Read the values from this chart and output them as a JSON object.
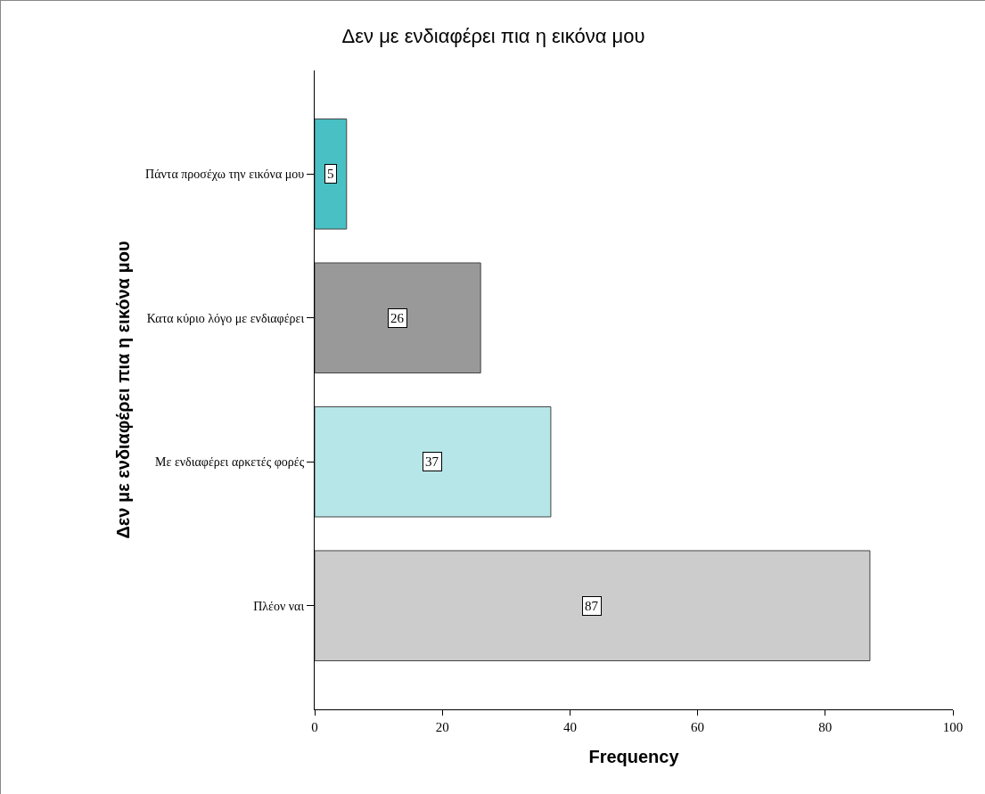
{
  "chart_data": {
    "type": "bar",
    "orientation": "horizontal",
    "title": "Δεν με ενδιαφέρει πια η εικόνα μου",
    "xlabel": "Frequency",
    "ylabel": "Δεν με ενδιαφέρει πια η εικόνα μου",
    "categories": [
      "Πάντα προσέχω την εικόνα μου",
      "Κατα κύριο λόγο με ενδιαφέρει",
      "Με ενδιαφέρει αρκετές φορές",
      "Πλέον ναι"
    ],
    "values": [
      5,
      26,
      37,
      87
    ],
    "colors": [
      "#48c0c4",
      "#999999",
      "#b6e6e8",
      "#cccccc"
    ],
    "xlim": [
      0,
      100
    ],
    "xticks": [
      0,
      20,
      40,
      60,
      80,
      100
    ],
    "grid": false,
    "data_labels": true
  }
}
